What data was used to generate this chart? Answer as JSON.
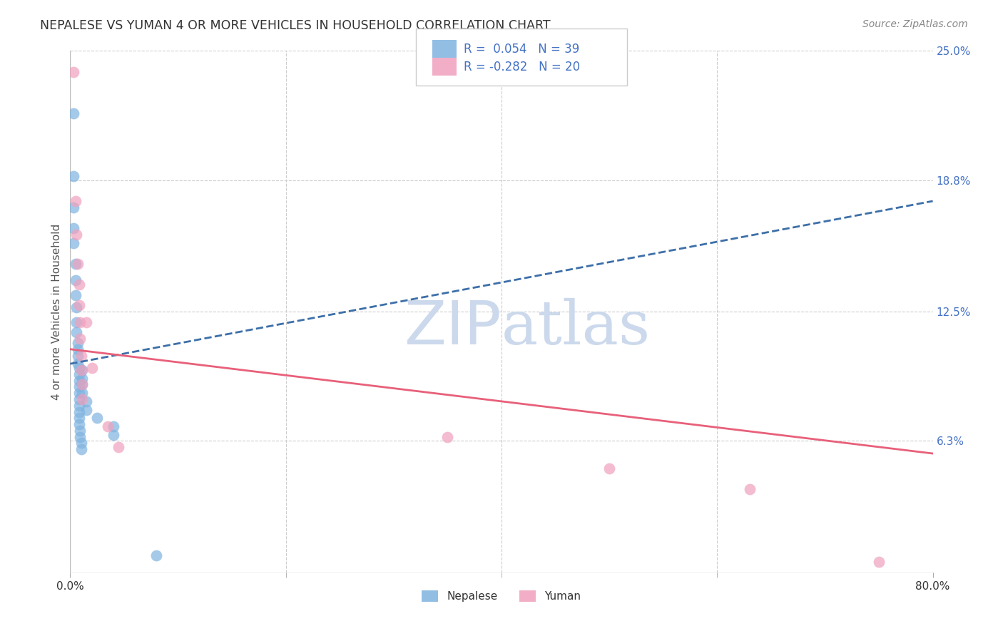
{
  "title": "NEPALESE VS YUMAN 4 OR MORE VEHICLES IN HOUSEHOLD CORRELATION CHART",
  "source": "Source: ZipAtlas.com",
  "ylabel": "4 or more Vehicles in Household",
  "xlim": [
    0.0,
    0.8
  ],
  "ylim": [
    0.0,
    0.25
  ],
  "xtick_labels": [
    "0.0%",
    "80.0%"
  ],
  "ytick_labels": [
    "6.3%",
    "12.5%",
    "18.8%",
    "25.0%"
  ],
  "ytick_values": [
    0.063,
    0.125,
    0.188,
    0.25
  ],
  "extra_xticks": [
    0.2,
    0.4,
    0.6
  ],
  "grid_color": "#cccccc",
  "background_color": "#ffffff",
  "nepalese_color": "#7fb3e0",
  "yuman_color": "#f0a0bc",
  "nepalese_R": 0.054,
  "nepalese_N": 39,
  "yuman_R": -0.282,
  "yuman_N": 20,
  "nepalese_line_color": "#3d6fa8",
  "yuman_line_color": "#e8607a",
  "nepalese_x": [
    0.003,
    0.003,
    0.003,
    0.003,
    0.003,
    0.005,
    0.005,
    0.005,
    0.006,
    0.006,
    0.006,
    0.007,
    0.007,
    0.007,
    0.007,
    0.008,
    0.008,
    0.008,
    0.008,
    0.008,
    0.008,
    0.008,
    0.008,
    0.008,
    0.008,
    0.009,
    0.009,
    0.01,
    0.01,
    0.011,
    0.011,
    0.011,
    0.011,
    0.015,
    0.015,
    0.025,
    0.04,
    0.04,
    0.08
  ],
  "nepalese_y": [
    0.22,
    0.19,
    0.175,
    0.165,
    0.158,
    0.148,
    0.14,
    0.133,
    0.127,
    0.12,
    0.115,
    0.11,
    0.107,
    0.104,
    0.1,
    0.098,
    0.095,
    0.092,
    0.089,
    0.086,
    0.083,
    0.08,
    0.077,
    0.074,
    0.071,
    0.068,
    0.065,
    0.062,
    0.059,
    0.097,
    0.093,
    0.09,
    0.086,
    0.082,
    0.078,
    0.074,
    0.07,
    0.066,
    0.008
  ],
  "yuman_x": [
    0.003,
    0.005,
    0.006,
    0.007,
    0.008,
    0.008,
    0.009,
    0.009,
    0.01,
    0.01,
    0.011,
    0.011,
    0.015,
    0.02,
    0.035,
    0.045,
    0.35,
    0.5,
    0.63,
    0.75
  ],
  "yuman_y": [
    0.24,
    0.178,
    0.162,
    0.148,
    0.138,
    0.128,
    0.12,
    0.112,
    0.104,
    0.097,
    0.09,
    0.083,
    0.12,
    0.098,
    0.07,
    0.06,
    0.065,
    0.05,
    0.04,
    0.005
  ],
  "watermark_zip": "ZIP",
  "watermark_atlas": "atlas",
  "watermark_color": "#ccd9ec",
  "nepalese_line_x0": 0.0,
  "nepalese_line_y0": 0.1,
  "nepalese_line_x1": 0.8,
  "nepalese_line_y1": 0.178,
  "yuman_line_x0": 0.0,
  "yuman_line_y0": 0.107,
  "yuman_line_x1": 0.8,
  "yuman_line_y1": 0.057,
  "legend_text_color": "#4472c4",
  "title_color": "#333333",
  "source_color": "#888888",
  "ylabel_color": "#555555",
  "tick_color": "#333333",
  "right_tick_color": "#4472c4"
}
